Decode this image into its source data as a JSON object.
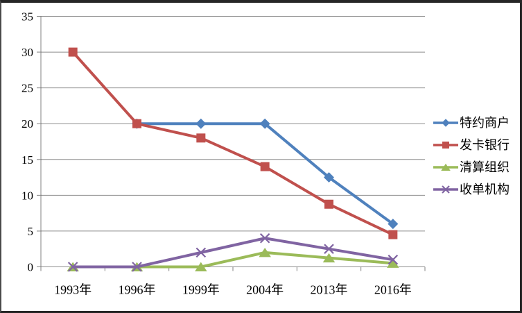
{
  "chart_data": {
    "type": "line",
    "title": "",
    "xlabel": "",
    "ylabel": "",
    "categories": [
      "1993年",
      "1996年",
      "1999年",
      "2004年",
      "2013年",
      "2016年"
    ],
    "series": [
      {
        "name": "特约商户",
        "color": "#4F81BD",
        "marker": "diamond",
        "values": [
          null,
          20,
          20,
          20,
          12.5,
          6
        ]
      },
      {
        "name": "发卡银行",
        "color": "#C0504D",
        "marker": "square",
        "values": [
          30,
          20,
          18,
          14,
          8.75,
          4.5
        ]
      },
      {
        "name": "清算组织",
        "color": "#9BBB59",
        "marker": "triangle",
        "values": [
          0,
          0,
          0,
          2,
          1.25,
          0.5
        ]
      },
      {
        "name": "收单机构",
        "color": "#8064A2",
        "marker": "x",
        "values": [
          0,
          0,
          2,
          4,
          2.5,
          1
        ]
      }
    ],
    "ylim": [
      0,
      35
    ],
    "yticks": [
      0,
      5,
      10,
      15,
      20,
      25,
      30,
      35
    ],
    "grid": "horizontal",
    "legend_position": "right",
    "axis_color": "#808080",
    "gridline_color": "#8c8c8c",
    "text_color": "#000000"
  }
}
